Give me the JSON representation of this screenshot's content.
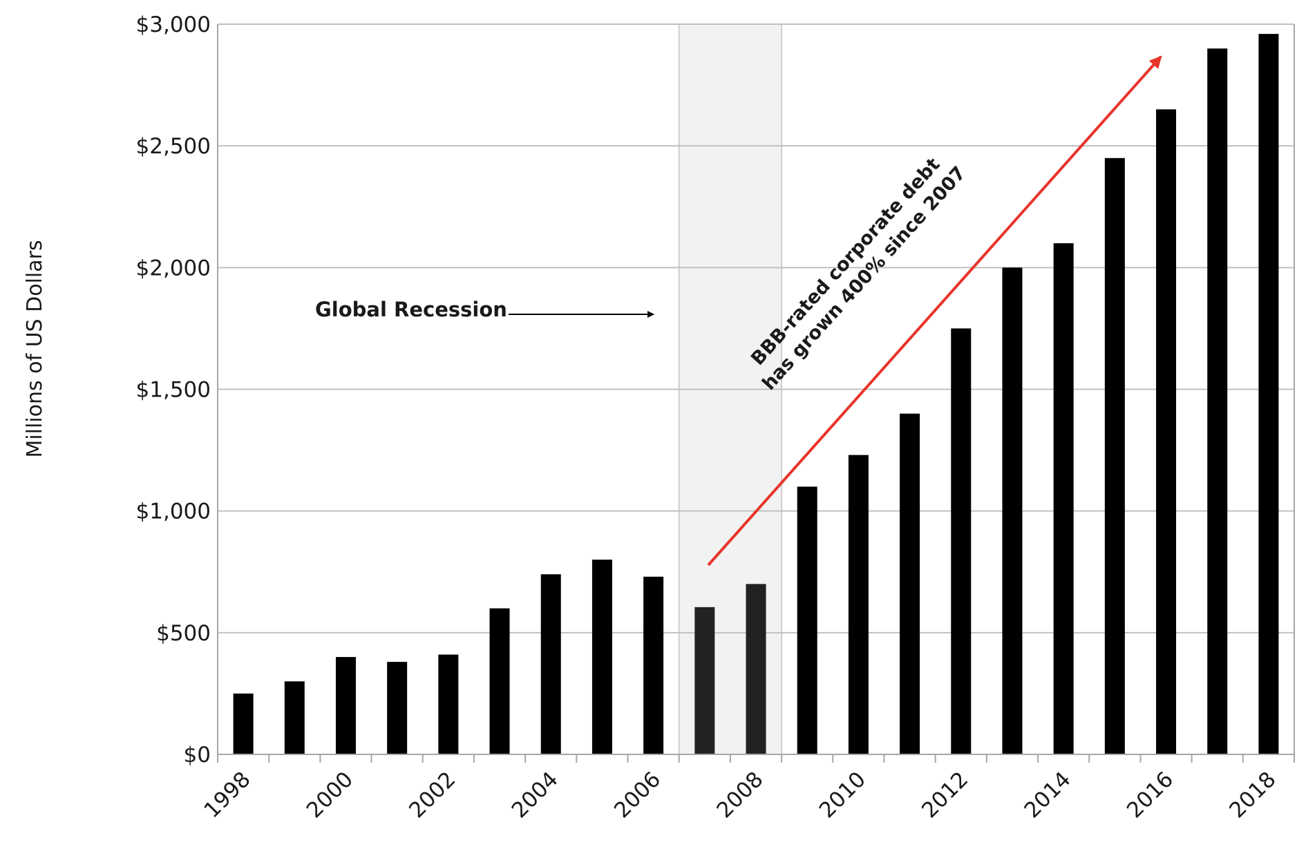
{
  "chart_data": {
    "type": "bar",
    "ylabel": "Millions of US Dollars",
    "ylim": [
      0,
      3000
    ],
    "yticks": [
      0,
      500,
      1000,
      1500,
      2000,
      2500,
      3000
    ],
    "ytick_labels": [
      "$0",
      "$500",
      "$1,000",
      "$1,500",
      "$2,000",
      "$2,500",
      "$3,000"
    ],
    "categories": [
      "1998",
      "1999",
      "2000",
      "2001",
      "2002",
      "2003",
      "2004",
      "2005",
      "2006",
      "2007",
      "2008",
      "2009",
      "2010",
      "2011",
      "2012",
      "2013",
      "2014",
      "2015",
      "2016",
      "2017",
      "2018"
    ],
    "xtick_labels": [
      "1998",
      "",
      "2000",
      "",
      "2002",
      "",
      "2004",
      "",
      "2006",
      "",
      "2008",
      "",
      "2010",
      "",
      "2012",
      "",
      "2014",
      "",
      "2016",
      "",
      "2018"
    ],
    "values": [
      250,
      300,
      400,
      380,
      410,
      600,
      740,
      800,
      730,
      605,
      700,
      1100,
      1230,
      1400,
      1750,
      2000,
      2100,
      2450,
      2650,
      2900,
      2960
    ],
    "grid": true,
    "colors": {
      "bar": "#000000",
      "bar_in_recession": "#222222",
      "grid": "#c0c0c0",
      "recession_band": "#f2f2f2",
      "arrow": "#e8342a",
      "axis": "#a6a6a6",
      "text": "#1a1a1a"
    },
    "recession_band": {
      "from": "2007",
      "to": "2008"
    },
    "annotations": {
      "recession_label": "Global Recession",
      "growth_line1": "BBB-rated corporate debt",
      "growth_line2": "has grown 400% since 2007"
    }
  }
}
